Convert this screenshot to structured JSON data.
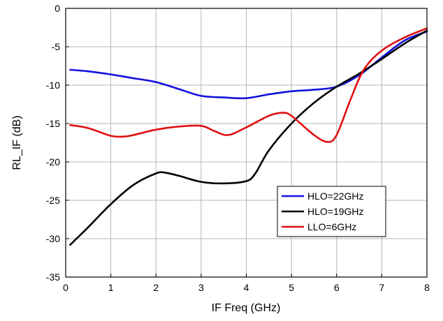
{
  "chart_data": {
    "type": "line",
    "title": "",
    "xlabel": "IF Freq (GHz)",
    "ylabel": "RL_IF (dB)",
    "xlim": [
      0,
      8
    ],
    "ylim": [
      -35,
      0
    ],
    "xticks": [
      "0",
      "1",
      "2",
      "3",
      "4",
      "5",
      "6",
      "7",
      "8"
    ],
    "yticks": [
      "0",
      "-5",
      "-10",
      "-15",
      "-20",
      "-25",
      "-30",
      "-35"
    ],
    "grid": true,
    "legend_position": "bottom-right",
    "series": [
      {
        "name": "HLO=22GHz",
        "color": "#1010e0",
        "x": [
          0.1,
          0.5,
          1.0,
          1.5,
          2.0,
          2.5,
          3.0,
          3.5,
          4.0,
          4.5,
          5.0,
          5.5,
          6.0,
          6.5,
          7.0,
          7.5,
          8.0
        ],
        "y": [
          -8.0,
          -8.2,
          -8.6,
          -9.1,
          -9.6,
          -10.5,
          -11.4,
          -11.6,
          -11.7,
          -11.2,
          -10.8,
          -10.6,
          -10.2,
          -8.7,
          -6.4,
          -4.2,
          -3.0
        ]
      },
      {
        "name": "HLO=19GHz",
        "color": "#000000",
        "x": [
          0.1,
          0.5,
          1.0,
          1.5,
          2.0,
          2.2,
          2.5,
          3.0,
          3.5,
          4.0,
          4.2,
          4.5,
          5.0,
          5.5,
          6.0,
          6.5,
          7.0,
          7.5,
          8.0
        ],
        "y": [
          -30.8,
          -28.5,
          -25.5,
          -23.0,
          -21.5,
          -21.4,
          -21.8,
          -22.6,
          -22.8,
          -22.5,
          -21.5,
          -18.5,
          -15.0,
          -12.3,
          -10.2,
          -8.5,
          -6.6,
          -4.6,
          -2.9
        ]
      },
      {
        "name": "LLO=6GHz",
        "color": "#e01010",
        "x": [
          0.1,
          0.5,
          1.0,
          1.3,
          1.5,
          2.0,
          2.5,
          3.0,
          3.3,
          3.6,
          4.0,
          4.5,
          4.8,
          5.0,
          5.5,
          5.8,
          6.0,
          6.3,
          6.6,
          7.0,
          7.5,
          8.0
        ],
        "y": [
          -15.2,
          -15.6,
          -16.6,
          -16.7,
          -16.5,
          -15.8,
          -15.4,
          -15.3,
          -16.0,
          -16.5,
          -15.5,
          -14.0,
          -13.6,
          -14.0,
          -16.5,
          -17.4,
          -16.5,
          -12.0,
          -8.0,
          -5.5,
          -3.8,
          -2.6
        ]
      }
    ]
  }
}
